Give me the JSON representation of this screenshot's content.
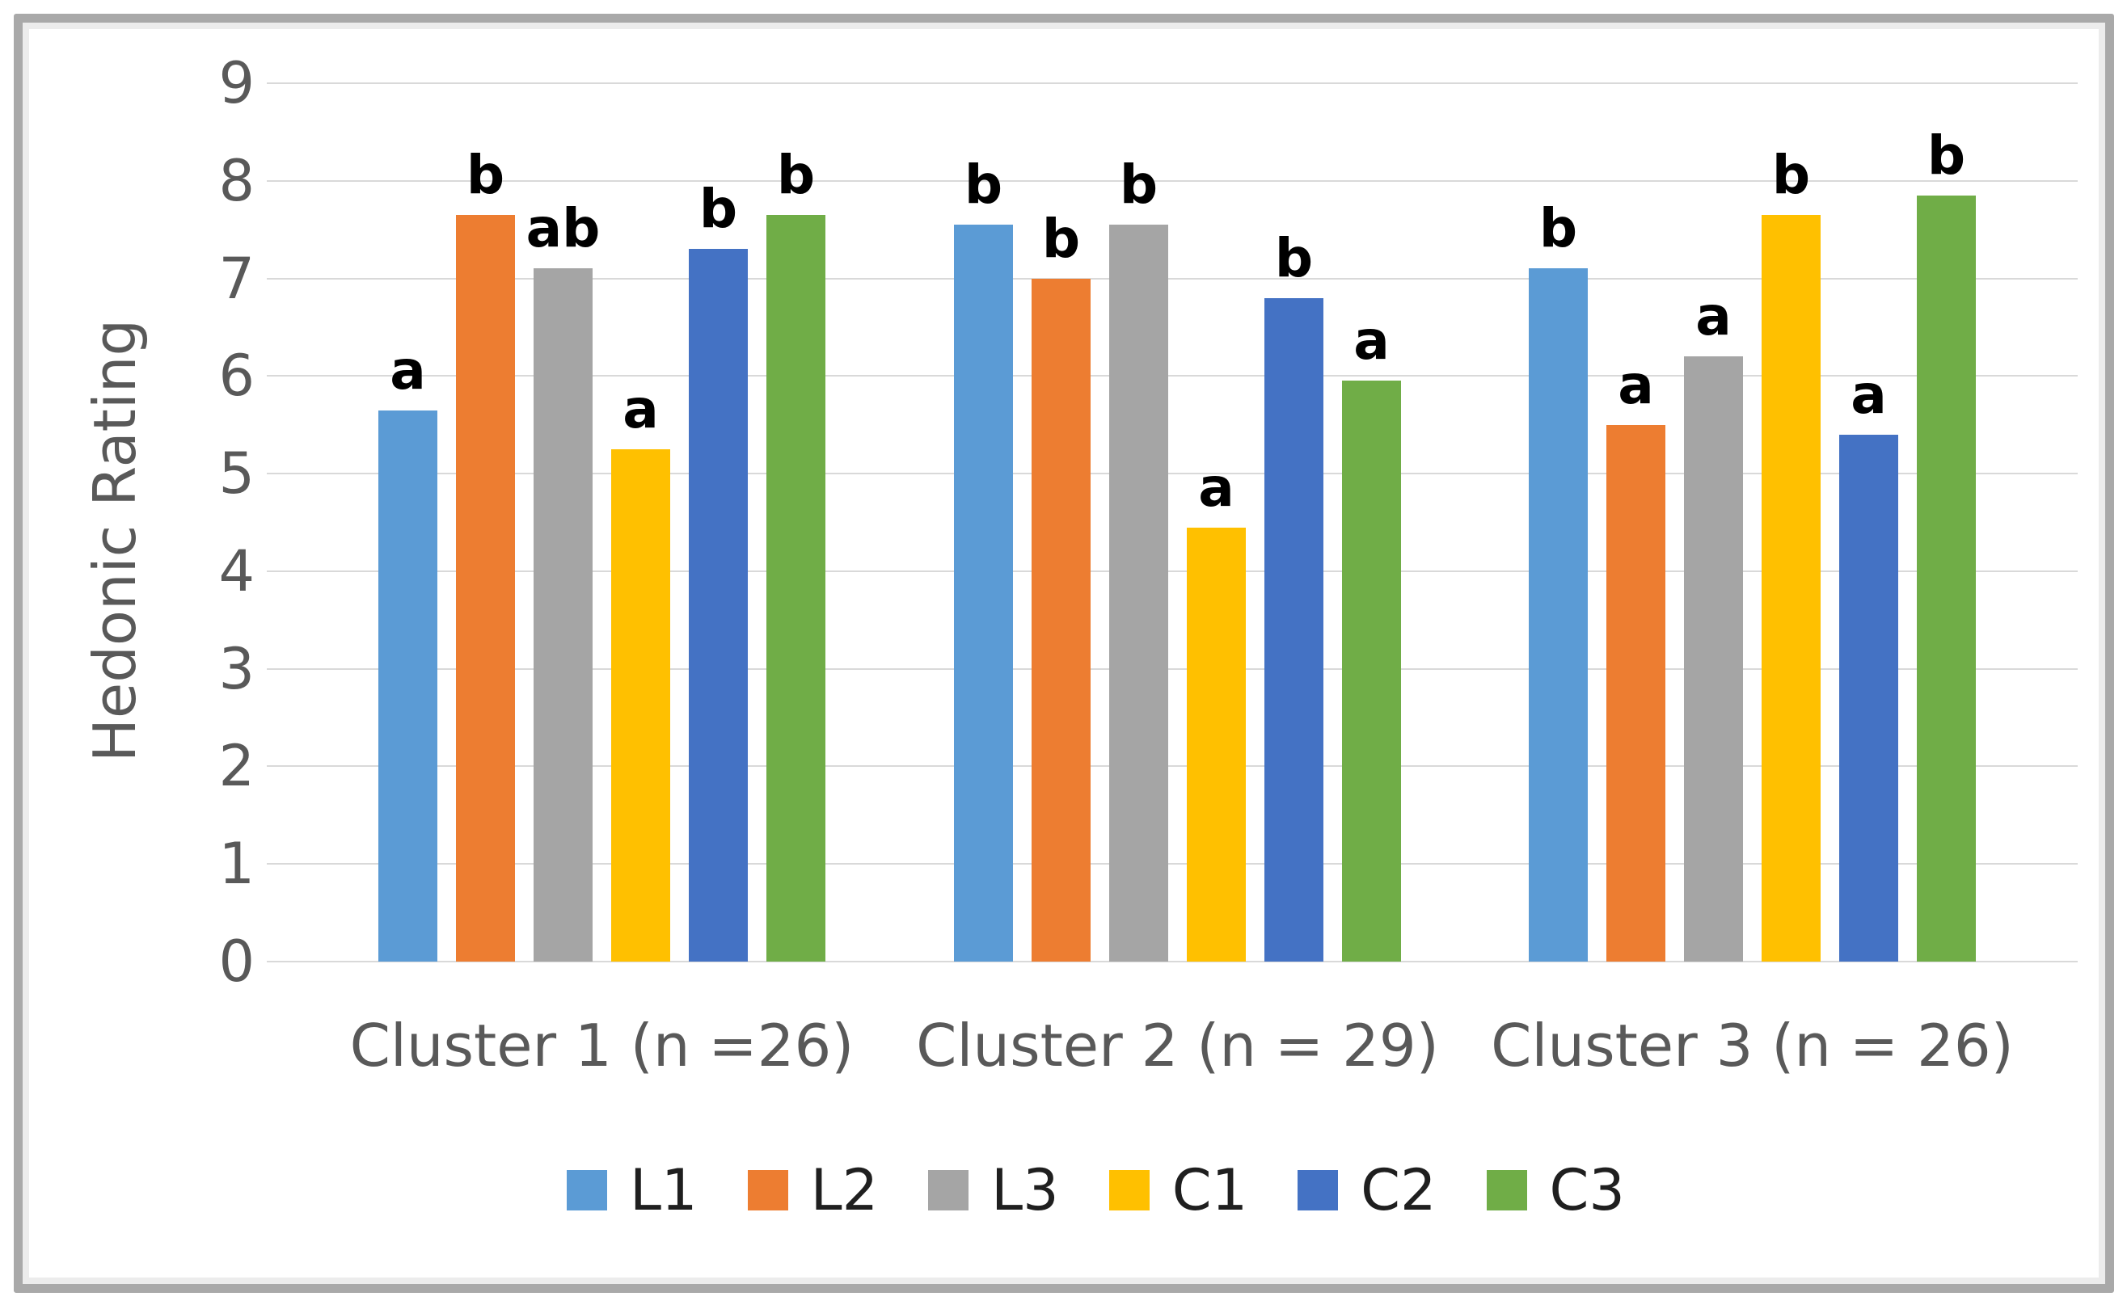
{
  "frame": {
    "border_color": "#a9a9a9"
  },
  "chart_data": {
    "type": "bar",
    "title": "",
    "ylabel": "Hedonic Rating",
    "xlabel": "",
    "ylim": [
      0,
      9
    ],
    "ytick_step": 1,
    "grid": true,
    "legend_position": "bottom",
    "categories": [
      "Cluster 1 (n =26)",
      "Cluster 2 (n = 29)",
      "Cluster 3 (n = 26)"
    ],
    "series": [
      {
        "name": "L1",
        "color": "#5B9BD5",
        "values": [
          5.65,
          7.55,
          7.1
        ],
        "sig_letters": [
          "a",
          "b",
          "b"
        ]
      },
      {
        "name": "L2",
        "color": "#ED7D31",
        "values": [
          7.65,
          7.0,
          5.5
        ],
        "sig_letters": [
          "b",
          "b",
          "a"
        ]
      },
      {
        "name": "L3",
        "color": "#A5A5A5",
        "values": [
          7.1,
          7.55,
          6.2
        ],
        "sig_letters": [
          "ab",
          "b",
          "a"
        ]
      },
      {
        "name": "C1",
        "color": "#FFC000",
        "values": [
          5.25,
          4.45,
          7.65
        ],
        "sig_letters": [
          "a",
          "a",
          "b"
        ]
      },
      {
        "name": "C2",
        "color": "#4472C4",
        "values": [
          7.3,
          6.8,
          5.4
        ],
        "sig_letters": [
          "b",
          "b",
          "a"
        ]
      },
      {
        "name": "C3",
        "color": "#70AD47",
        "values": [
          7.65,
          5.95,
          7.85
        ],
        "sig_letters": [
          "b",
          "a",
          "b"
        ]
      }
    ],
    "gridline_color": "#d9d9d9",
    "axis_text_color": "#595959",
    "annotation_color": "#000000"
  }
}
